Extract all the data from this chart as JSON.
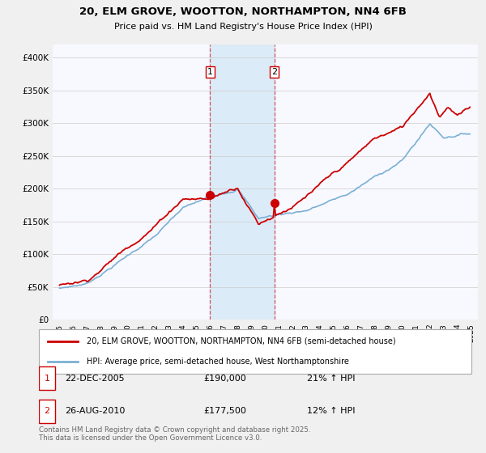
{
  "title": "20, ELM GROVE, WOOTTON, NORTHAMPTON, NN4 6FB",
  "subtitle": "Price paid vs. HM Land Registry's House Price Index (HPI)",
  "legend_line1": "20, ELM GROVE, WOOTTON, NORTHAMPTON, NN4 6FB (semi-detached house)",
  "legend_line2": "HPI: Average price, semi-detached house, West Northamptonshire",
  "transaction1_date": "22-DEC-2005",
  "transaction1_price": "£190,000",
  "transaction1_hpi": "21% ↑ HPI",
  "transaction2_date": "26-AUG-2010",
  "transaction2_price": "£177,500",
  "transaction2_hpi": "12% ↑ HPI",
  "footer": "Contains HM Land Registry data © Crown copyright and database right 2025.\nThis data is licensed under the Open Government Licence v3.0.",
  "house_color": "#cc0000",
  "hpi_color": "#7ab0d4",
  "marker1_x": 2005.97,
  "marker1_y": 190000,
  "marker2_x": 2010.65,
  "marker2_y": 177500,
  "vline1_x": 2005.97,
  "vline2_x": 2010.65,
  "ylim": [
    0,
    420000
  ],
  "xlim": [
    1994.5,
    2025.5
  ],
  "background_color": "#f0f0f0",
  "plot_background": "#f8f8ff"
}
